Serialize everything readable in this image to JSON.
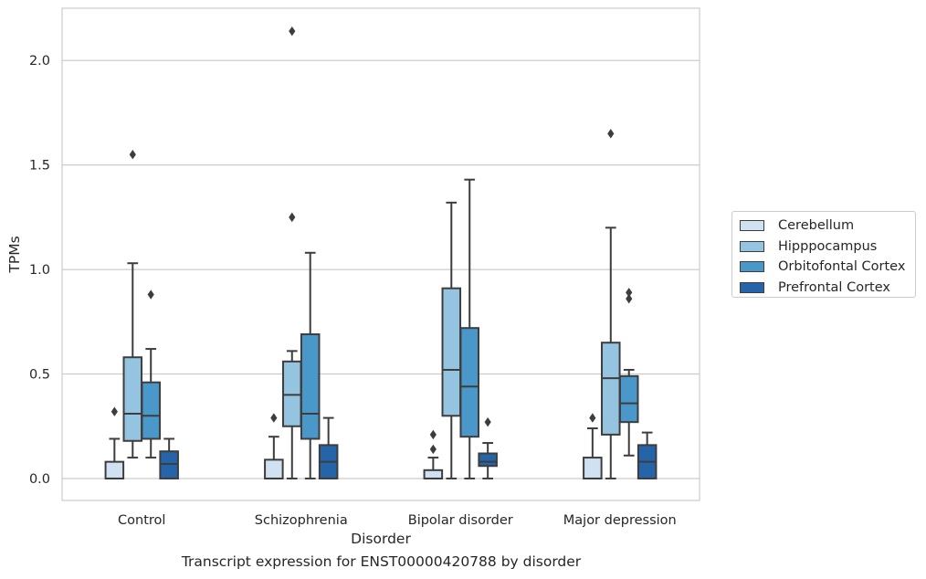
{
  "chart_data": {
    "type": "box",
    "xlabel": "Disorder",
    "ylabel": "TPMs",
    "caption": "Transcript expression for ENST00000420788 by disorder",
    "ylim": [
      -0.105,
      2.25
    ],
    "yticks": [
      0.0,
      0.5,
      1.0,
      1.5,
      2.0
    ],
    "ytick_labels": [
      "0.0",
      "0.5",
      "1.0",
      "1.5",
      "2.0"
    ],
    "grid": "horizontal",
    "legend_position": "right",
    "categories": [
      "Control",
      "Schizophrenia",
      "Bipolar disorder",
      "Major depression"
    ],
    "series": [
      {
        "name": "Cerebellum",
        "color": "#d0e1f2",
        "boxes": [
          {
            "whislo": 0.0,
            "q1": 0.0,
            "med": 0.0,
            "q3": 0.08,
            "whishi": 0.19,
            "fliers": [
              0.32
            ]
          },
          {
            "whislo": 0.0,
            "q1": 0.0,
            "med": 0.0,
            "q3": 0.09,
            "whishi": 0.2,
            "fliers": [
              0.29
            ]
          },
          {
            "whislo": 0.0,
            "q1": 0.0,
            "med": 0.0,
            "q3": 0.04,
            "whishi": 0.1,
            "fliers": [
              0.14,
              0.21
            ]
          },
          {
            "whislo": 0.0,
            "q1": 0.0,
            "med": 0.0,
            "q3": 0.1,
            "whishi": 0.24,
            "fliers": [
              0.29
            ]
          }
        ]
      },
      {
        "name": "Hipppocampus",
        "color": "#94c4df",
        "boxes": [
          {
            "whislo": 0.1,
            "q1": 0.18,
            "med": 0.31,
            "q3": 0.58,
            "whishi": 1.03,
            "fliers": [
              1.55
            ]
          },
          {
            "whislo": 0.0,
            "q1": 0.25,
            "med": 0.4,
            "q3": 0.56,
            "whishi": 0.61,
            "fliers": [
              1.25,
              2.14
            ]
          },
          {
            "whislo": 0.0,
            "q1": 0.3,
            "med": 0.52,
            "q3": 0.91,
            "whishi": 1.32,
            "fliers": []
          },
          {
            "whislo": 0.0,
            "q1": 0.21,
            "med": 0.48,
            "q3": 0.65,
            "whishi": 1.2,
            "fliers": [
              1.65
            ]
          }
        ]
      },
      {
        "name": "Orbitofontal Cortex",
        "color": "#4a98c9",
        "boxes": [
          {
            "whislo": 0.1,
            "q1": 0.19,
            "med": 0.3,
            "q3": 0.46,
            "whishi": 0.62,
            "fliers": [
              0.88
            ]
          },
          {
            "whislo": 0.0,
            "q1": 0.19,
            "med": 0.31,
            "q3": 0.69,
            "whishi": 1.08,
            "fliers": []
          },
          {
            "whislo": 0.0,
            "q1": 0.2,
            "med": 0.44,
            "q3": 0.72,
            "whishi": 1.43,
            "fliers": []
          },
          {
            "whislo": 0.11,
            "q1": 0.27,
            "med": 0.36,
            "q3": 0.49,
            "whishi": 0.52,
            "fliers": [
              0.86,
              0.89
            ]
          }
        ]
      },
      {
        "name": "Prefrontal Cortex",
        "color": "#2564a8",
        "boxes": [
          {
            "whislo": 0.0,
            "q1": 0.0,
            "med": 0.07,
            "q3": 0.13,
            "whishi": 0.19,
            "fliers": []
          },
          {
            "whislo": 0.0,
            "q1": 0.0,
            "med": 0.08,
            "q3": 0.16,
            "whishi": 0.29,
            "fliers": []
          },
          {
            "whislo": 0.0,
            "q1": 0.06,
            "med": 0.08,
            "q3": 0.12,
            "whishi": 0.17,
            "fliers": [
              0.27
            ]
          },
          {
            "whislo": 0.0,
            "q1": 0.0,
            "med": 0.08,
            "q3": 0.16,
            "whishi": 0.22,
            "fliers": []
          }
        ]
      }
    ]
  }
}
